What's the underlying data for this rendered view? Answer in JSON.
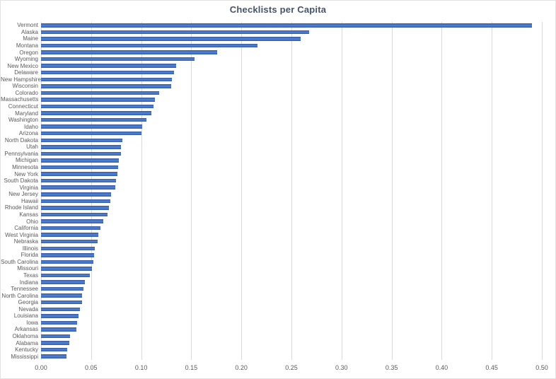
{
  "chart_data": {
    "type": "bar",
    "orientation": "horizontal",
    "title": "Checklists per Capita",
    "xlabel": "",
    "ylabel": "",
    "xlim": [
      0,
      0.5
    ],
    "x_tick_step": 0.05,
    "x_tick_labels": [
      "0.00",
      "0.05",
      "0.10",
      "0.15",
      "0.20",
      "0.25",
      "0.30",
      "0.35",
      "0.40",
      "0.45",
      "0.50"
    ],
    "grid": "vertical",
    "legend": "none",
    "categories": [
      "Vermont",
      "Alaska",
      "Maine",
      "Montana",
      "Oregon",
      "Wyoming",
      "New Mexico",
      "Delaware",
      "New Hampshire",
      "Wisconsin",
      "Colorado",
      "Massachusetts",
      "Connecticut",
      "Maryland",
      "Washington",
      "Idaho",
      "Arizona",
      "North Dakota",
      "Utah",
      "Pennsylvania",
      "Michigan",
      "Minnesota",
      "New York",
      "South Dakota",
      "Virginia",
      "New Jersey",
      "Hawaii",
      "Rhode Island",
      "Kansas",
      "Ohio",
      "California",
      "West Virginia",
      "Nebraska",
      "Illinois",
      "Florida",
      "South Carolina",
      "Missouri",
      "Texas",
      "Indiana",
      "Tennessee",
      "North Carolina",
      "Georgia",
      "Nevada",
      "Louisiana",
      "Iowa",
      "Arkansas",
      "Oklahoma",
      "Alabama",
      "Kentucky",
      "Mississippi"
    ],
    "values": [
      0.49,
      0.268,
      0.259,
      0.216,
      0.176,
      0.153,
      0.135,
      0.133,
      0.131,
      0.13,
      0.118,
      0.114,
      0.112,
      0.11,
      0.105,
      0.101,
      0.1,
      0.081,
      0.08,
      0.0795,
      0.078,
      0.077,
      0.076,
      0.075,
      0.074,
      0.07,
      0.069,
      0.0675,
      0.0665,
      0.062,
      0.059,
      0.0572,
      0.0568,
      0.054,
      0.053,
      0.052,
      0.0505,
      0.049,
      0.044,
      0.0423,
      0.0413,
      0.0408,
      0.0387,
      0.0377,
      0.036,
      0.035,
      0.0292,
      0.0285,
      0.026,
      0.0255
    ],
    "colors": {
      "bar": "#4472C4",
      "bar_edge": "#34599C",
      "gridline": "#D9D9D9",
      "axis_text": "#595959",
      "title_text": "#44546A",
      "background": "#FFFFFF"
    }
  }
}
